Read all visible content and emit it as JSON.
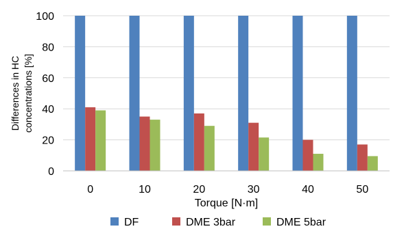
{
  "chart_data": {
    "type": "bar",
    "categories": [
      "0",
      "10",
      "20",
      "30",
      "40",
      "50"
    ],
    "series": [
      {
        "name": "DF",
        "values": [
          100,
          100,
          100,
          100,
          100,
          100
        ],
        "color": "#4f81bd"
      },
      {
        "name": "DME 3bar",
        "values": [
          41,
          35,
          37,
          31,
          20,
          17
        ],
        "color": "#c0504d"
      },
      {
        "name": "DME 5bar",
        "values": [
          39,
          33,
          29,
          21.5,
          11,
          9.5
        ],
        "color": "#9bbb59"
      }
    ],
    "xlabel": "Torque [N·m]",
    "ylabel_lines": [
      "Differences in HC",
      "concentrations [%]"
    ],
    "ylim": [
      0,
      100
    ],
    "yticks": [
      0,
      20,
      40,
      60,
      80,
      100
    ],
    "grid": true,
    "legend_position": "bottom"
  }
}
